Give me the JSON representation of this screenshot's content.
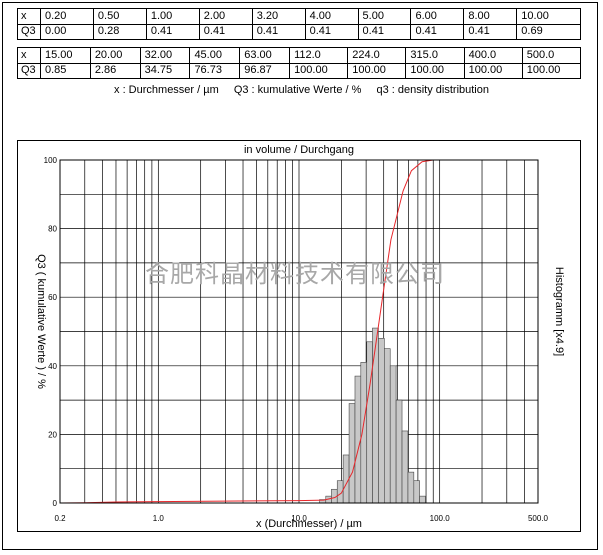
{
  "table1": {
    "row_labels": [
      "x",
      "Q3"
    ],
    "x": [
      "0.20",
      "0.50",
      "1.00",
      "2.00",
      "3.20",
      "4.00",
      "5.00",
      "6.00",
      "8.00",
      "10.00"
    ],
    "q3": [
      "0.00",
      "0.28",
      "0.41",
      "0.41",
      "0.41",
      "0.41",
      "0.41",
      "0.41",
      "0.41",
      "0.69"
    ]
  },
  "table2": {
    "row_labels": [
      "x",
      "Q3"
    ],
    "x": [
      "15.00",
      "20.00",
      "32.00",
      "45.00",
      "63.00",
      "112.0",
      "224.0",
      "315.0",
      "400.0",
      "500.0"
    ],
    "q3": [
      "0.85",
      "2.86",
      "34.75",
      "76.73",
      "96.87",
      "100.00",
      "100.00",
      "100.00",
      "100.00",
      "100.00"
    ]
  },
  "legend": {
    "x_desc": "x : Durchmesser / µm",
    "q3_desc": "Q3 : kumulative Werte / %",
    "q3d_desc": "q3 : density distribution"
  },
  "watermark": "合肥科晶材料技术有限公司",
  "chart_data": {
    "type": "line",
    "title": "in volume / Durchgang",
    "xlabel": "x (Durchmesser) / µm",
    "ylabel": "Q3 ( kumulative Werte ) / %",
    "y2label": "Histogramm [x4.9]",
    "x_scale": "log",
    "xlim": [
      0.2,
      500.0
    ],
    "ylim": [
      0,
      100
    ],
    "x_tick_labels": [
      "0.2",
      "1.0",
      "10.0",
      "100.0",
      "500.0"
    ],
    "x_tick_values": [
      0.2,
      1.0,
      10.0,
      100.0,
      500.0
    ],
    "y_tick_labels": [
      "0",
      "20",
      "40",
      "60",
      "80",
      "100"
    ],
    "y_tick_values": [
      0,
      20,
      40,
      60,
      80,
      100
    ],
    "grid": true,
    "series": [
      {
        "kind": "cumulative",
        "color": "#e8262a",
        "points": [
          [
            0.2,
            0.0
          ],
          [
            0.3,
            0.1
          ],
          [
            0.5,
            0.28
          ],
          [
            1.0,
            0.41
          ],
          [
            10.0,
            0.69
          ],
          [
            15.0,
            0.85
          ],
          [
            18.0,
            1.6
          ],
          [
            20.0,
            2.86
          ],
          [
            24.0,
            9.0
          ],
          [
            28.0,
            20.0
          ],
          [
            32.0,
            34.75
          ],
          [
            38.0,
            56.0
          ],
          [
            45.0,
            76.73
          ],
          [
            55.0,
            91.0
          ],
          [
            63.0,
            96.87
          ],
          [
            75.0,
            99.5
          ],
          [
            90.0,
            100.0
          ],
          [
            112.0,
            100.0
          ],
          [
            500.0,
            100.0
          ]
        ]
      },
      {
        "kind": "histogram",
        "color": "#c8c8c8",
        "bins": [
          [
            14.0,
            1.0
          ],
          [
            15.5,
            2.0
          ],
          [
            17.0,
            4.0
          ],
          [
            18.7,
            6.5
          ],
          [
            20.6,
            14.0
          ],
          [
            22.7,
            29.0
          ],
          [
            25.0,
            37.0
          ],
          [
            27.5,
            41.0
          ],
          [
            30.3,
            47.0
          ],
          [
            33.3,
            51.0
          ],
          [
            36.7,
            48.0
          ],
          [
            40.4,
            45.0
          ],
          [
            44.5,
            40.0
          ],
          [
            49.0,
            30.0
          ],
          [
            54.0,
            21.0
          ],
          [
            59.5,
            9.0
          ],
          [
            65.5,
            6.5
          ],
          [
            72.0,
            2.0
          ]
        ]
      }
    ]
  }
}
